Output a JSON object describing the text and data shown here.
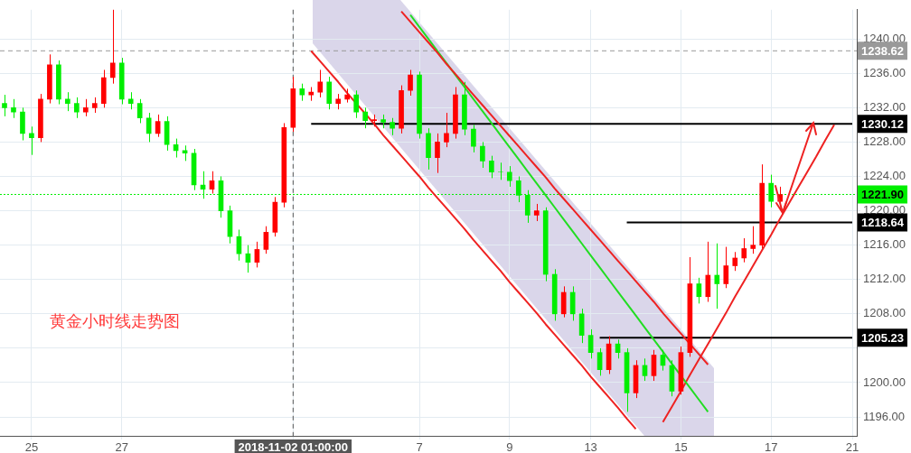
{
  "chart_data": {
    "type": "candlestick",
    "categories": [
      null,
      null,
      null,
      "25",
      null,
      null,
      null,
      null,
      null,
      null,
      null,
      null,
      null,
      "27",
      null,
      null,
      null,
      null,
      null,
      null,
      null,
      null,
      null,
      null,
      null,
      null,
      null,
      null,
      null,
      null,
      null,
      null,
      "2018-11-02 01:00:00",
      null,
      null,
      null,
      null,
      null,
      null,
      null,
      null,
      null,
      null,
      null,
      null,
      null,
      "7",
      null,
      null,
      null,
      null,
      null,
      null,
      null,
      null,
      null,
      "9",
      null,
      null,
      null,
      null,
      null,
      null,
      null,
      null,
      "13",
      null,
      null,
      null,
      null,
      null,
      null,
      null,
      null,
      null,
      "15",
      null,
      null,
      null,
      null,
      null,
      null,
      null,
      null,
      null,
      "17",
      null,
      null,
      null,
      null,
      null,
      null,
      null,
      null,
      "21"
    ],
    "ohlc": [
      [
        1232.5,
        1233.5,
        1231,
        1232
      ],
      [
        1232,
        1233,
        1230.8,
        1231.5
      ],
      [
        1231.5,
        1232,
        1228.2,
        1229
      ],
      [
        1229,
        1229.8,
        1226.5,
        1228.5
      ],
      [
        1228.5,
        1233.6,
        1228,
        1233
      ],
      [
        1233,
        1238.2,
        1232.5,
        1237
      ],
      [
        1237,
        1237.5,
        1232.4,
        1233
      ],
      [
        1233,
        1233.8,
        1231.6,
        1232.5
      ],
      [
        1232.5,
        1233.2,
        1230.8,
        1231.5
      ],
      [
        1231.5,
        1233,
        1231,
        1232
      ],
      [
        1232,
        1233.2,
        1231.4,
        1232.5
      ],
      [
        1232.5,
        1236.4,
        1232,
        1235.5
      ],
      [
        1235.5,
        1243.4,
        1234.8,
        1237.2
      ],
      [
        1237.2,
        1237.8,
        1232.4,
        1233
      ],
      [
        1233,
        1233.8,
        1231.8,
        1232.5
      ],
      [
        1232.5,
        1233,
        1230.2,
        1230.8
      ],
      [
        1230.8,
        1231.4,
        1228,
        1229
      ],
      [
        1229,
        1231.2,
        1228.6,
        1230.4
      ],
      [
        1230.4,
        1231,
        1227,
        1227.7
      ],
      [
        1227.7,
        1228.4,
        1226.2,
        1227
      ],
      [
        1227,
        1227.6,
        1225.8,
        1226.7
      ],
      [
        1226.7,
        1227.2,
        1222.4,
        1223
      ],
      [
        1223,
        1224.6,
        1221.4,
        1222.5
      ],
      [
        1222.5,
        1224.6,
        1222,
        1223.5
      ],
      [
        1223.5,
        1224,
        1219.2,
        1220
      ],
      [
        1220,
        1220.6,
        1216.2,
        1217
      ],
      [
        1217,
        1217.8,
        1214.2,
        1215
      ],
      [
        1215,
        1216,
        1212.8,
        1214
      ],
      [
        1214,
        1216.4,
        1213.4,
        1215.5
      ],
      [
        1215.5,
        1218.2,
        1215,
        1217.5
      ],
      [
        1217.5,
        1221.6,
        1217,
        1221
      ],
      [
        1221,
        1230.2,
        1220.4,
        1229.7
      ],
      [
        1229.7,
        1235.6,
        1229.2,
        1234.2
      ],
      [
        1234.2,
        1234.8,
        1232.8,
        1233.5
      ],
      [
        1233.5,
        1234.4,
        1232.8,
        1233.8
      ],
      [
        1233.8,
        1236.4,
        1233.2,
        1235
      ],
      [
        1235,
        1235.6,
        1231.8,
        1232.5
      ],
      [
        1232.5,
        1233.6,
        1231.8,
        1233
      ],
      [
        1233,
        1234.2,
        1232.6,
        1233.5
      ],
      [
        1233.5,
        1234,
        1230.8,
        1231.5
      ],
      [
        1231.5,
        1232,
        1229.6,
        1230.5
      ],
      [
        1230.5,
        1231.2,
        1229.8,
        1230.6
      ],
      [
        1230.6,
        1231.2,
        1229.6,
        1230.3
      ],
      [
        1230.3,
        1230.8,
        1228.8,
        1229.6
      ],
      [
        1229.6,
        1234.6,
        1229,
        1234
      ],
      [
        1234,
        1236.4,
        1233.4,
        1235.8
      ],
      [
        1235.8,
        1236.2,
        1228.4,
        1229
      ],
      [
        1229,
        1229.6,
        1224.8,
        1226.2
      ],
      [
        1226.2,
        1229,
        1224.4,
        1228
      ],
      [
        1228,
        1231.4,
        1227.4,
        1229
      ],
      [
        1229,
        1234.4,
        1228.4,
        1233.5
      ],
      [
        1233.5,
        1235,
        1228.8,
        1229.5
      ],
      [
        1229.5,
        1230,
        1226.8,
        1227.5
      ],
      [
        1227.5,
        1228,
        1225,
        1225.8
      ],
      [
        1225.8,
        1226.4,
        1223.8,
        1224.5
      ],
      [
        1224.5,
        1225.6,
        1223.6,
        1224.5
      ],
      [
        1224.5,
        1225.2,
        1222.8,
        1223.5
      ],
      [
        1223.5,
        1224,
        1221,
        1221.8
      ],
      [
        1221.8,
        1222.4,
        1218.6,
        1219.5
      ],
      [
        1219.5,
        1220.8,
        1218.8,
        1220
      ],
      [
        1220,
        1220.4,
        1211.8,
        1212.6
      ],
      [
        1212.6,
        1213.2,
        1207.2,
        1208
      ],
      [
        1208,
        1211.2,
        1207.6,
        1210.5
      ],
      [
        1210.5,
        1211.2,
        1207.2,
        1208
      ],
      [
        1208,
        1208.6,
        1204.6,
        1205.5
      ],
      [
        1205.5,
        1206.2,
        1202.8,
        1203.5
      ],
      [
        1203.5,
        1204,
        1200.8,
        1201.5
      ],
      [
        1201.5,
        1205.4,
        1201,
        1204.5
      ],
      [
        1204.5,
        1205,
        1202.8,
        1203.5
      ],
      [
        1203.5,
        1204,
        1196.6,
        1198.8
      ],
      [
        1198.8,
        1202.6,
        1198.2,
        1202
      ],
      [
        1202,
        1202.8,
        1200.2,
        1200.8
      ],
      [
        1200.8,
        1203.8,
        1200.2,
        1203.2
      ],
      [
        1203.2,
        1203.8,
        1201.4,
        1202
      ],
      [
        1202,
        1202.6,
        1198.4,
        1199
      ],
      [
        1199,
        1204.2,
        1198.6,
        1203.5
      ],
      [
        1203.5,
        1214.6,
        1203,
        1211.5
      ],
      [
        1211.5,
        1212.2,
        1209.2,
        1210
      ],
      [
        1210,
        1216.4,
        1209.4,
        1212.5
      ],
      [
        1212.5,
        1216.2,
        1208.6,
        1211.5
      ],
      [
        1211.5,
        1215.8,
        1211,
        1213.6
      ],
      [
        1213.6,
        1215.2,
        1213,
        1214.5
      ],
      [
        1214.5,
        1216.8,
        1214,
        1215.6
      ],
      [
        1215.6,
        1218.2,
        1215,
        1216
      ],
      [
        1216,
        1225.4,
        1215.6,
        1223.2
      ],
      [
        1223.2,
        1224.2,
        1220.4,
        1221.1
      ],
      [
        1221.1,
        1222.8,
        1220.6,
        1221.9
      ],
      null,
      null,
      null,
      null,
      null,
      null,
      null,
      null
    ],
    "colors": [
      "#00ee00",
      "#00ee00",
      "#00ee00",
      "#00ee00",
      "#ff0000",
      "#ff0000",
      "#00ee00",
      "#00ee00",
      "#00ee00",
      "#ff0000",
      "#ff0000",
      "#ff0000",
      "#ff0000",
      "#00ee00",
      "#00ee00",
      "#00ee00",
      "#00ee00",
      "#ff0000",
      "#00ee00",
      "#00ee00",
      "#00ee00",
      "#00ee00",
      "#00ee00",
      "#ff0000",
      "#00ee00",
      "#00ee00",
      "#00ee00",
      "#00ee00",
      "#ff0000",
      "#ff0000",
      "#ff0000",
      "#ff0000",
      "#ff0000",
      "#00ee00",
      "#ff0000",
      "#ff0000",
      "#00ee00",
      "#ff0000",
      "#ff0000",
      "#00ee00",
      "#00ee00",
      "#ff0000",
      "#00ee00",
      "#00ee00",
      "#ff0000",
      "#ff0000",
      "#00ee00",
      "#00ee00",
      "#ff0000",
      "#ff0000",
      "#ff0000",
      "#00ee00",
      "#00ee00",
      "#00ee00",
      "#00ee00",
      "#00ee00",
      "#00ee00",
      "#00ee00",
      "#00ee00",
      "#ff0000",
      "#00ee00",
      "#00ee00",
      "#ff0000",
      "#00ee00",
      "#00ee00",
      "#00ee00",
      "#00ee00",
      "#ff0000",
      "#00ee00",
      "#00ee00",
      "#ff0000",
      "#00ee00",
      "#ff0000",
      "#00ee00",
      "#00ee00",
      "#ff0000",
      "#ff0000",
      "#00ee00",
      "#ff0000",
      "#00ee00",
      "#ff0000",
      "#ff0000",
      "#ff0000",
      "#ff0000",
      "#ff0000",
      "#00ee00",
      "#ff0000",
      null,
      null,
      null,
      null,
      null,
      null,
      null,
      null
    ],
    "series": [
      {
        "type": "line",
        "color": "#ee2222",
        "values": [
          null,
          null,
          null,
          null,
          null,
          null,
          null,
          null,
          null,
          null,
          null,
          null,
          null,
          null,
          null,
          null,
          null,
          null,
          null,
          null,
          null,
          null,
          null,
          null,
          null,
          null,
          null,
          null,
          null,
          null,
          null,
          null,
          null,
          null,
          null,
          null,
          null,
          null,
          null,
          null,
          null,
          null,
          null,
          null,
          1243.2,
          1242.0,
          1240.8,
          1239.6,
          1238.4,
          1237.1,
          1235.9,
          1234.7,
          1233.5,
          1232.3,
          1231.1,
          1229.9,
          1228.7,
          1227.5,
          1226.3,
          1225.1,
          1223.9,
          1222.6,
          1221.4,
          1220.2,
          1219.0,
          1217.8,
          1216.6,
          1215.4,
          1214.2,
          1213.0,
          1211.8,
          1210.6,
          1209.4,
          1208.1,
          1206.9,
          1205.7,
          1204.5,
          1203.3,
          1202.1,
          null,
          null,
          null,
          null,
          null,
          null,
          null,
          null,
          null,
          null,
          null,
          null,
          null,
          null,
          null,
          null
        ]
      },
      {
        "type": "line",
        "color": "#ee2222",
        "values": [
          null,
          null,
          null,
          null,
          null,
          null,
          null,
          null,
          null,
          null,
          null,
          null,
          null,
          null,
          null,
          null,
          null,
          null,
          null,
          null,
          null,
          null,
          null,
          null,
          null,
          null,
          null,
          null,
          null,
          null,
          null,
          null,
          null,
          null,
          1238.6,
          1237.4,
          1236.2,
          1235.0,
          1233.7,
          1232.5,
          1231.3,
          1230.1,
          1228.8,
          1227.6,
          1226.4,
          1225.2,
          1224.0,
          1222.7,
          1221.5,
          1220.3,
          1219.1,
          1217.9,
          1216.6,
          1215.4,
          1214.2,
          1213.0,
          1211.7,
          1210.5,
          1209.3,
          1208.1,
          1206.8,
          1205.6,
          1204.4,
          1203.2,
          1202.0,
          1200.7,
          1199.5,
          1198.3,
          1197.1,
          1195.8,
          1194.6,
          null,
          null,
          null,
          null,
          null,
          null,
          null,
          null,
          null,
          null,
          null,
          null,
          null,
          null,
          null,
          null,
          null,
          null,
          null,
          null,
          null,
          null,
          null,
          null
        ]
      },
      {
        "type": "line",
        "color": "#22dd22",
        "values": [
          null,
          null,
          null,
          null,
          null,
          null,
          null,
          null,
          null,
          null,
          null,
          null,
          null,
          null,
          null,
          null,
          null,
          null,
          null,
          null,
          null,
          null,
          null,
          null,
          null,
          null,
          null,
          null,
          null,
          null,
          null,
          null,
          null,
          null,
          null,
          null,
          null,
          null,
          null,
          null,
          null,
          null,
          null,
          null,
          null,
          1242.8,
          1241.4,
          1240.0,
          1238.6,
          1237.2,
          1235.8,
          1234.4,
          1233.0,
          1231.6,
          1230.2,
          1228.8,
          1227.4,
          1226.0,
          1224.6,
          1223.2,
          1221.8,
          1220.4,
          1219.0,
          1217.6,
          1216.2,
          1214.8,
          1213.4,
          1212.0,
          1210.6,
          1209.2,
          1207.8,
          1206.4,
          1205.0,
          1203.6,
          1202.2,
          1200.8,
          1199.4,
          1198.0,
          1196.6,
          null,
          null,
          null,
          null,
          null,
          null,
          null,
          null,
          null,
          null,
          null,
          null,
          null,
          null,
          null,
          null
        ]
      },
      {
        "type": "line",
        "color": "#ee2222",
        "values": [
          null,
          null,
          null,
          null,
          null,
          null,
          null,
          null,
          null,
          null,
          null,
          null,
          null,
          null,
          null,
          null,
          null,
          null,
          null,
          null,
          null,
          null,
          null,
          null,
          null,
          null,
          null,
          null,
          null,
          null,
          null,
          null,
          null,
          null,
          null,
          null,
          null,
          null,
          null,
          null,
          null,
          null,
          null,
          null,
          null,
          null,
          null,
          null,
          null,
          null,
          null,
          null,
          null,
          null,
          null,
          null,
          null,
          null,
          null,
          null,
          null,
          null,
          null,
          null,
          null,
          null,
          null,
          null,
          null,
          null,
          null,
          null,
          null,
          1195.4,
          1197.2,
          1199.0,
          1200.9,
          1202.7,
          1204.5,
          1206.3,
          1208.1,
          1210.0,
          1211.8,
          1213.6,
          1215.4,
          1217.2,
          1219.1,
          1220.9,
          1222.7,
          1224.5,
          1226.3,
          1228.2,
          1230.0,
          null,
          null
        ]
      },
      {
        "type": "line",
        "color": "#000000",
        "values": [
          null,
          null,
          null,
          null,
          null,
          null,
          null,
          null,
          null,
          null,
          null,
          null,
          null,
          null,
          null,
          null,
          null,
          null,
          null,
          null,
          null,
          null,
          null,
          null,
          null,
          null,
          null,
          null,
          null,
          null,
          null,
          null,
          null,
          null,
          1230.12,
          1230.12,
          1230.12,
          1230.12,
          1230.12,
          1230.12,
          1230.12,
          1230.12,
          1230.12,
          1230.12,
          1230.12,
          1230.12,
          1230.12,
          1230.12,
          1230.12,
          1230.12,
          1230.12,
          1230.12,
          1230.12,
          1230.12,
          1230.12,
          1230.12,
          1230.12,
          1230.12,
          1230.12,
          1230.12,
          1230.12,
          1230.12,
          1230.12,
          1230.12,
          1230.12,
          1230.12,
          1230.12,
          1230.12,
          1230.12,
          1230.12,
          1230.12,
          1230.12,
          1230.12,
          1230.12,
          1230.12,
          1230.12,
          1230.12,
          1230.12,
          1230.12,
          1230.12,
          1230.12,
          1230.12,
          1230.12,
          1230.12,
          1230.12,
          1230.12,
          1230.12,
          1230.12,
          1230.12,
          1230.12,
          1230.12,
          1230.12,
          1230.12,
          1230.12,
          1230.12
        ],
        "value_labels": [
          null,
          null,
          null,
          null,
          null,
          null,
          null,
          null,
          null,
          null,
          null,
          null,
          null,
          null,
          null,
          null,
          null,
          null,
          null,
          null,
          null,
          null,
          null,
          null,
          null,
          null,
          null,
          null,
          null,
          null,
          null,
          null,
          null,
          null,
          null,
          null,
          null,
          null,
          null,
          null,
          null,
          null,
          null,
          null,
          null,
          null,
          null,
          null,
          null,
          null,
          null,
          null,
          null,
          null,
          null,
          null,
          null,
          null,
          null,
          null,
          null,
          null,
          null,
          null,
          null,
          null,
          null,
          null,
          null,
          null,
          null,
          null,
          null,
          null,
          null,
          null,
          null,
          null,
          null,
          null,
          null,
          null,
          null,
          null,
          null,
          null,
          null,
          null,
          null,
          null,
          null,
          null,
          null,
          null,
          "1230.12"
        ]
      },
      {
        "type": "line",
        "color": "#000000",
        "values": [
          null,
          null,
          null,
          null,
          null,
          null,
          null,
          null,
          null,
          null,
          null,
          null,
          null,
          null,
          null,
          null,
          null,
          null,
          null,
          null,
          null,
          null,
          null,
          null,
          null,
          null,
          null,
          null,
          null,
          null,
          null,
          null,
          null,
          null,
          null,
          null,
          null,
          null,
          null,
          null,
          null,
          null,
          null,
          null,
          null,
          null,
          null,
          null,
          null,
          null,
          null,
          null,
          null,
          null,
          null,
          null,
          null,
          null,
          null,
          null,
          null,
          null,
          null,
          null,
          null,
          null,
          null,
          null,
          null,
          1218.64,
          1218.64,
          1218.64,
          1218.64,
          1218.64,
          1218.64,
          1218.64,
          1218.64,
          1218.64,
          1218.64,
          1218.64,
          1218.64,
          1218.64,
          1218.64,
          1218.64,
          1218.64,
          1218.64,
          1218.64,
          1218.64,
          1218.64,
          1218.64,
          1218.64,
          1218.64,
          1218.64,
          1218.64,
          1218.64
        ],
        "value_labels": [
          null,
          null,
          null,
          null,
          null,
          null,
          null,
          null,
          null,
          null,
          null,
          null,
          null,
          null,
          null,
          null,
          null,
          null,
          null,
          null,
          null,
          null,
          null,
          null,
          null,
          null,
          null,
          null,
          null,
          null,
          null,
          null,
          null,
          null,
          null,
          null,
          null,
          null,
          null,
          null,
          null,
          null,
          null,
          null,
          null,
          null,
          null,
          null,
          null,
          null,
          null,
          null,
          null,
          null,
          null,
          null,
          null,
          null,
          null,
          null,
          null,
          null,
          null,
          null,
          null,
          null,
          null,
          null,
          null,
          null,
          null,
          null,
          null,
          null,
          null,
          null,
          null,
          null,
          null,
          null,
          null,
          null,
          null,
          null,
          null,
          null,
          null,
          null,
          null,
          null,
          null,
          null,
          null,
          null,
          "1218.64"
        ]
      },
      {
        "type": "line",
        "color": "#000000",
        "values": [
          null,
          null,
          null,
          null,
          null,
          null,
          null,
          null,
          null,
          null,
          null,
          null,
          null,
          null,
          null,
          null,
          null,
          null,
          null,
          null,
          null,
          null,
          null,
          null,
          null,
          null,
          null,
          null,
          null,
          null,
          null,
          null,
          null,
          null,
          null,
          null,
          null,
          null,
          null,
          null,
          null,
          null,
          null,
          null,
          null,
          null,
          null,
          null,
          null,
          null,
          null,
          null,
          null,
          null,
          null,
          null,
          null,
          null,
          null,
          null,
          null,
          null,
          null,
          null,
          null,
          null,
          1205.23,
          1205.23,
          1205.23,
          1205.23,
          1205.23,
          1205.23,
          1205.23,
          1205.23,
          1205.23,
          1205.23,
          1205.23,
          1205.23,
          1205.23,
          1205.23,
          1205.23,
          1205.23,
          1205.23,
          1205.23,
          1205.23,
          1205.23,
          1205.23,
          1205.23,
          1205.23,
          1205.23,
          1205.23,
          1205.23,
          1205.23,
          1205.23,
          1205.23
        ],
        "value_labels": [
          null,
          null,
          null,
          null,
          null,
          null,
          null,
          null,
          null,
          null,
          null,
          null,
          null,
          null,
          null,
          null,
          null,
          null,
          null,
          null,
          null,
          null,
          null,
          null,
          null,
          null,
          null,
          null,
          null,
          null,
          null,
          null,
          null,
          null,
          null,
          null,
          null,
          null,
          null,
          null,
          null,
          null,
          null,
          null,
          null,
          null,
          null,
          null,
          null,
          null,
          null,
          null,
          null,
          null,
          null,
          null,
          null,
          null,
          null,
          null,
          null,
          null,
          null,
          null,
          null,
          null,
          null,
          null,
          null,
          null,
          null,
          null,
          null,
          null,
          null,
          null,
          null,
          null,
          null,
          null,
          null,
          null,
          null,
          null,
          null,
          null,
          null,
          null,
          null,
          null,
          null,
          null,
          null,
          null,
          "1205.23"
        ]
      }
    ],
    "ylim": [
      1193.8,
      1243.4
    ],
    "yticks": [
      {
        "value": 1196,
        "label": "1196.00"
      },
      {
        "value": 1200,
        "label": "1200.00"
      },
      {
        "value": 1204,
        "label": null
      },
      {
        "value": 1208,
        "label": "1208.00"
      },
      {
        "value": 1212,
        "label": "1212.00"
      },
      {
        "value": 1216,
        "label": "1216.00"
      },
      {
        "value": 1220,
        "label": "1220.00"
      },
      {
        "value": 1224,
        "label": "1224.00"
      },
      {
        "value": 1228,
        "label": "1228.00"
      },
      {
        "value": 1232,
        "label": "1232.00"
      },
      {
        "value": 1236,
        "label": "1236.00"
      },
      {
        "value": 1240,
        "label": "1240.00"
      }
    ],
    "grid": true,
    "legend": false,
    "ref_lines": [
      {
        "axis": "y",
        "value": 1238.62,
        "label": "1238.62",
        "color": "#999999",
        "line_style": "dashed"
      },
      {
        "axis": "y",
        "value": 1221.9,
        "label": "1221.90",
        "color": "#00ee00",
        "line_style": "dotted"
      },
      {
        "axis": "x",
        "value": "2018-11-02 01:00:00",
        "color": "#555555",
        "line_style": "dashed"
      }
    ],
    "annotations": [
      "黄金小时线走势图"
    ]
  }
}
